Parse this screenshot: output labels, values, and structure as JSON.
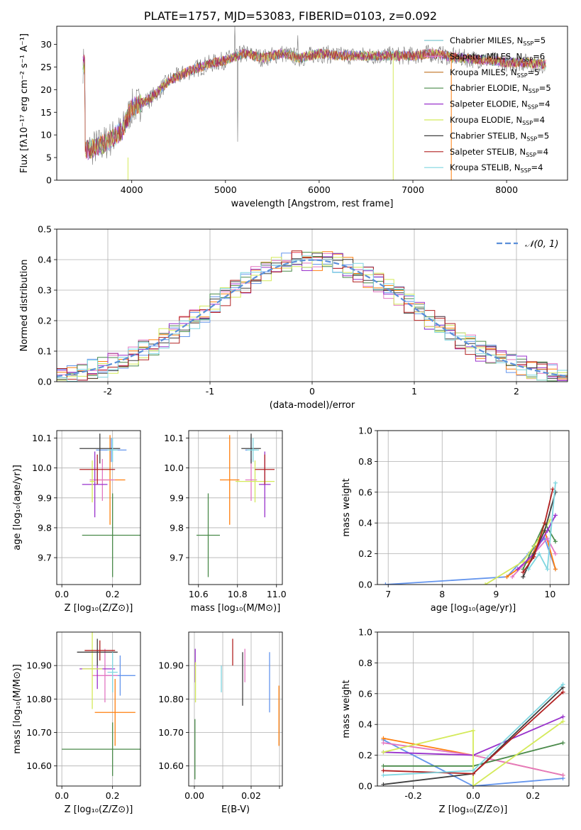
{
  "title": "PLATE=1757, MJD=53083, FIBERID=0103, z=0.092",
  "colors": [
    "#6495ed",
    "#ff7f0e",
    "#e377c2",
    "#4a8a4a",
    "#9932cc",
    "#d4ea5a",
    "#404040",
    "#b22222",
    "#7fd6e0"
  ],
  "legend": [
    {
      "label": "Chabrier MILES, N",
      "sub": "SSP",
      "tail": "=5",
      "color": "#7fc8d0"
    },
    {
      "label": "Salpeter MILES, N",
      "sub": "SSP",
      "tail": "=6",
      "color": "#e377c2"
    },
    {
      "label": "Kroupa MILES, N",
      "sub": "SSP",
      "tail": "=5",
      "color": "#c07020"
    },
    {
      "label": "Chabrier ELODIE, N",
      "sub": "SSP",
      "tail": "=5",
      "color": "#4a8a4a"
    },
    {
      "label": "Salpeter ELODIE, N",
      "sub": "SSP",
      "tail": "=4",
      "color": "#9932cc"
    },
    {
      "label": "Kroupa ELODIE, N",
      "sub": "SSP",
      "tail": "=4",
      "color": "#d4ea5a"
    },
    {
      "label": "Chabrier STELIB, N",
      "sub": "SSP",
      "tail": "=5",
      "color": "#404040"
    },
    {
      "label": "Salpeter STELIB, N",
      "sub": "SSP",
      "tail": "=4",
      "color": "#b22222"
    },
    {
      "label": "Kroupa STELIB, N",
      "sub": "SSP",
      "tail": "=4",
      "color": "#7fd6e0"
    }
  ],
  "chart_data": [
    {
      "type": "line",
      "name": "spectrum",
      "xlabel": "wavelength [Angstrom, rest frame]",
      "ylabel": "Flux [fλ10⁻¹⁷ erg cm⁻² s⁻¹ A⁻¹]",
      "xlim": [
        3200,
        8650
      ],
      "ylim": [
        0,
        34
      ],
      "xticks": [
        4000,
        5000,
        6000,
        7000,
        8000
      ],
      "yticks": [
        0,
        5,
        10,
        15,
        20,
        25,
        30
      ],
      "continuum": [
        [
          3500,
          6.5
        ],
        [
          3700,
          8
        ],
        [
          3900,
          11
        ],
        [
          4000,
          16
        ],
        [
          4200,
          18
        ],
        [
          4400,
          22
        ],
        [
          4600,
          24
        ],
        [
          4800,
          25.5
        ],
        [
          5000,
          26.5
        ],
        [
          5200,
          28
        ],
        [
          5400,
          27
        ],
        [
          5600,
          28
        ],
        [
          5800,
          27
        ],
        [
          6000,
          28
        ],
        [
          6200,
          27.5
        ],
        [
          6500,
          27.5
        ],
        [
          6800,
          27.5
        ],
        [
          7000,
          27.5
        ],
        [
          7200,
          28
        ],
        [
          7500,
          27
        ],
        [
          7800,
          26.5
        ],
        [
          8000,
          26
        ],
        [
          8200,
          26
        ],
        [
          8400,
          25.5
        ]
      ]
    },
    {
      "type": "histogram",
      "name": "residuals",
      "xlabel": "(data-model)/error",
      "ylabel": "Normed distribution",
      "xlim": [
        -2.5,
        2.5
      ],
      "ylim": [
        0,
        0.5
      ],
      "xticks": [
        -2,
        -1,
        0,
        1,
        2
      ],
      "yticks": [
        0,
        0.1,
        0.2,
        0.3,
        0.4,
        0.5
      ],
      "legend": "𝒩(0, 1)",
      "bin_width": 0.1
    },
    {
      "type": "errorbar",
      "name": "age-vs-Z",
      "xlabel": "Z [log₁₀(Z/Z⊙)]",
      "ylabel": "age  [log₁₀(age/yr)]",
      "xlim": [
        -0.02,
        0.31
      ],
      "ylim": [
        9.61,
        10.125
      ],
      "xticks": [
        0.0,
        0.2
      ],
      "yticks": [
        9.7,
        9.8,
        9.9,
        10.0,
        10.1
      ],
      "points": [
        {
          "x": 0.195,
          "y": 10.06,
          "xerr": 0.06,
          "yerr": 0.04,
          "c": 0
        },
        {
          "x": 0.19,
          "y": 9.96,
          "xerr": 0.06,
          "yerr": 0.15,
          "c": 1
        },
        {
          "x": 0.16,
          "y": 9.96,
          "xerr": 0.05,
          "yerr": 0.07,
          "c": 2
        },
        {
          "x": 0.2,
          "y": 9.775,
          "xerr": 0.12,
          "yerr": 0.14,
          "c": 3
        },
        {
          "x": 0.13,
          "y": 9.945,
          "xerr": 0.05,
          "yerr": 0.11,
          "c": 4
        },
        {
          "x": 0.12,
          "y": 9.955,
          "xerr": 0.01,
          "yerr": 0.07,
          "c": 5
        },
        {
          "x": 0.15,
          "y": 10.065,
          "xerr": 0.08,
          "yerr": 0.05,
          "c": 6
        },
        {
          "x": 0.14,
          "y": 9.995,
          "xerr": 0.07,
          "yerr": 0.05,
          "c": 7
        },
        {
          "x": 0.2,
          "y": 10.06,
          "xerr": 0.02,
          "yerr": 0.04,
          "c": 8
        }
      ]
    },
    {
      "type": "errorbar",
      "name": "age-vs-mass",
      "xlabel": "mass [log₁₀(M/M⊙)]",
      "xlim": [
        10.55,
        11.03
      ],
      "ylim": [
        9.61,
        10.125
      ],
      "xticks": [
        10.6,
        10.8,
        11.0
      ],
      "yticks": [
        9.7,
        9.8,
        9.9,
        10.0,
        10.1
      ],
      "points": [
        {
          "x": 10.87,
          "y": 10.06,
          "xerr": 0.03,
          "yerr": 0.04,
          "c": 0
        },
        {
          "x": 10.76,
          "y": 9.96,
          "xerr": 0.05,
          "yerr": 0.15,
          "c": 1
        },
        {
          "x": 10.87,
          "y": 9.96,
          "xerr": 0.03,
          "yerr": 0.07,
          "c": 2
        },
        {
          "x": 10.65,
          "y": 9.775,
          "xerr": 0.06,
          "yerr": 0.14,
          "c": 3
        },
        {
          "x": 10.94,
          "y": 9.945,
          "xerr": 0.03,
          "yerr": 0.11,
          "c": 4
        },
        {
          "x": 10.89,
          "y": 9.955,
          "xerr": 0.1,
          "yerr": 0.07,
          "c": 5
        },
        {
          "x": 10.87,
          "y": 10.065,
          "xerr": 0.05,
          "yerr": 0.05,
          "c": 6
        },
        {
          "x": 10.94,
          "y": 9.995,
          "xerr": 0.05,
          "yerr": 0.05,
          "c": 7
        },
        {
          "x": 10.88,
          "y": 10.06,
          "xerr": 0.03,
          "yerr": 0.04,
          "c": 8
        }
      ]
    },
    {
      "type": "line",
      "name": "massweight-vs-age",
      "xlabel": "age  [log₁₀(age/yr)]",
      "ylabel": "mass weight",
      "xlim": [
        6.8,
        10.35
      ],
      "ylim": [
        0,
        1
      ],
      "xticks": [
        7,
        8,
        9,
        10
      ],
      "yticks": [
        0,
        0.2,
        0.4,
        0.6,
        0.8,
        1.0
      ],
      "series": [
        {
          "c": 0,
          "x": [
            6.95,
            9.2,
            9.6,
            9.9,
            10.1
          ],
          "y": [
            0,
            0.05,
            0.2,
            0.3,
            0.1
          ]
        },
        {
          "c": 1,
          "x": [
            9.2,
            9.6,
            9.9,
            10.1
          ],
          "y": [
            0.05,
            0.15,
            0.35,
            0.1
          ]
        },
        {
          "c": 2,
          "x": [
            9.3,
            9.7,
            9.95,
            10.1
          ],
          "y": [
            0.05,
            0.2,
            0.3,
            0.2
          ]
        },
        {
          "c": 3,
          "x": [
            9.5,
            9.7,
            9.9,
            10.1
          ],
          "y": [
            0.1,
            0.25,
            0.4,
            0.28
          ]
        },
        {
          "c": 4,
          "x": [
            9.4,
            9.7,
            9.95,
            10.1
          ],
          "y": [
            0.1,
            0.2,
            0.35,
            0.45
          ]
        },
        {
          "c": 5,
          "x": [
            8.8,
            9.5,
            9.8,
            10.0
          ],
          "y": [
            0,
            0.15,
            0.3,
            0.42
          ]
        },
        {
          "c": 6,
          "x": [
            9.5,
            9.7,
            9.9,
            10.1
          ],
          "y": [
            0.05,
            0.2,
            0.35,
            0.6
          ]
        },
        {
          "c": 7,
          "x": [
            9.5,
            9.7,
            9.9,
            10.05
          ],
          "y": [
            0.08,
            0.18,
            0.4,
            0.62
          ]
        },
        {
          "c": 8,
          "x": [
            9.6,
            9.8,
            9.95,
            10.1
          ],
          "y": [
            0.1,
            0.2,
            0.1,
            0.66
          ]
        }
      ]
    },
    {
      "type": "errorbar",
      "name": "mass-vs-Z",
      "xlabel": "Z [log₁₀(Z/Z⊙)]",
      "ylabel": "mass [log₁₀(M/M⊙)]",
      "xlim": [
        -0.02,
        0.31
      ],
      "ylim": [
        10.54,
        11.0
      ],
      "xticks": [
        0.0,
        0.2
      ],
      "yticks": [
        10.6,
        10.7,
        10.8,
        10.9
      ],
      "points": [
        {
          "x": 0.23,
          "y": 10.87,
          "xerr": 0.06,
          "yerr": 0.06,
          "c": 0
        },
        {
          "x": 0.21,
          "y": 10.76,
          "xerr": 0.08,
          "yerr": 0.1,
          "c": 1
        },
        {
          "x": 0.17,
          "y": 10.87,
          "xerr": 0.05,
          "yerr": 0.08,
          "c": 2
        },
        {
          "x": 0.2,
          "y": 10.65,
          "xerr": 0.2,
          "yerr": 0.08,
          "c": 3
        },
        {
          "x": 0.14,
          "y": 10.89,
          "xerr": 0.07,
          "yerr": 0.06,
          "c": 4
        },
        {
          "x": 0.12,
          "y": 10.89,
          "xerr": 0.04,
          "yerr": 0.12,
          "c": 5
        },
        {
          "x": 0.14,
          "y": 10.94,
          "xerr": 0.08,
          "yerr": 0.04,
          "c": 6
        },
        {
          "x": 0.15,
          "y": 10.945,
          "xerr": 0.06,
          "yerr": 0.03,
          "c": 7
        },
        {
          "x": 0.2,
          "y": 10.88,
          "xerr": 0.02,
          "yerr": 0.06,
          "c": 8
        }
      ]
    },
    {
      "type": "errorbar",
      "name": "mass-vs-EBV",
      "xlabel": "E(B-V)",
      "xlim": [
        -0.002,
        0.031
      ],
      "ylim": [
        10.54,
        11.0
      ],
      "xticks": [
        0.0,
        0.01,
        0.02,
        0.03
      ],
      "xticklabels": [
        "0.00",
        "",
        "0.02",
        ""
      ],
      "yticks": [
        10.6,
        10.7,
        10.8,
        10.9
      ],
      "points": [
        {
          "x": 0.0265,
          "y": 10.85,
          "xerr": 0,
          "yerr": 0.09,
          "c": 0
        },
        {
          "x": 0.0298,
          "y": 10.75,
          "xerr": 0,
          "yerr": 0.09,
          "c": 1
        },
        {
          "x": 0.0178,
          "y": 10.9,
          "xerr": 0,
          "yerr": 0.05,
          "c": 2
        },
        {
          "x": 0.0002,
          "y": 10.65,
          "xerr": 0,
          "yerr": 0.09,
          "c": 3
        },
        {
          "x": 0.0003,
          "y": 10.9,
          "xerr": 0,
          "yerr": 0.05,
          "c": 4
        },
        {
          "x": 0.0004,
          "y": 10.85,
          "xerr": 0,
          "yerr": 0.06,
          "c": 5
        },
        {
          "x": 0.017,
          "y": 10.86,
          "xerr": 0,
          "yerr": 0.08,
          "c": 6
        },
        {
          "x": 0.0135,
          "y": 10.94,
          "xerr": 0,
          "yerr": 0.04,
          "c": 7
        },
        {
          "x": 0.0095,
          "y": 10.86,
          "xerr": 0,
          "yerr": 0.04,
          "c": 8
        }
      ]
    },
    {
      "type": "line",
      "name": "massweight-vs-Z",
      "xlabel": "Z [log₁₀(Z/Z⊙)]",
      "ylabel": "mass weight",
      "xlim": [
        -0.32,
        0.32
      ],
      "ylim": [
        0,
        1
      ],
      "xticks": [
        -0.2,
        0.0,
        0.2
      ],
      "yticks": [
        0,
        0.2,
        0.4,
        0.6,
        0.8,
        1.0
      ],
      "series": [
        {
          "c": 0,
          "x": [
            -0.3,
            0.0,
            0.3
          ],
          "y": [
            0.3,
            0.0,
            0.05
          ]
        },
        {
          "c": 1,
          "x": [
            -0.3,
            0.0,
            0.3
          ],
          "y": [
            0.31,
            0.2,
            0.07
          ]
        },
        {
          "c": 2,
          "x": [
            -0.3,
            0.0,
            0.3
          ],
          "y": [
            0.28,
            0.2,
            0.07
          ]
        },
        {
          "c": 3,
          "x": [
            -0.3,
            0.0,
            0.3
          ],
          "y": [
            0.13,
            0.13,
            0.28
          ]
        },
        {
          "c": 4,
          "x": [
            -0.3,
            0.0,
            0.3
          ],
          "y": [
            0.22,
            0.2,
            0.45
          ]
        },
        {
          "c": 5,
          "x": [
            -0.3,
            0.0,
            0.0,
            0.3
          ],
          "y": [
            0.22,
            0.36,
            0.0,
            0.42
          ]
        },
        {
          "c": 6,
          "x": [
            -0.3,
            0.0,
            0.3
          ],
          "y": [
            0.01,
            0.08,
            0.64
          ]
        },
        {
          "c": 7,
          "x": [
            -0.3,
            0.0,
            0.3
          ],
          "y": [
            0.1,
            0.08,
            0.61
          ]
        },
        {
          "c": 8,
          "x": [
            -0.3,
            0.0,
            0.3
          ],
          "y": [
            0.07,
            0.1,
            0.66
          ]
        }
      ]
    }
  ]
}
